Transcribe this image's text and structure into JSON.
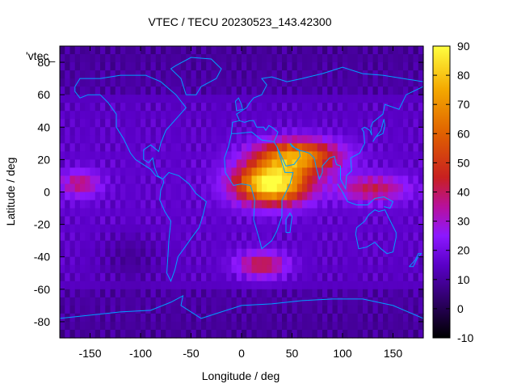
{
  "chart_data": {
    "type": "heatmap",
    "title": "VTEC / TECU 20230523_143.42300",
    "xlabel": "Longitude / deg",
    "ylabel": "Latitude / deg",
    "legend_label": "'vtec_",
    "xlim": [
      -180,
      180
    ],
    "ylim": [
      -90,
      90
    ],
    "xticks": [
      -150,
      -100,
      -50,
      0,
      50,
      100,
      150
    ],
    "yticks": [
      -80,
      -60,
      -40,
      -20,
      0,
      20,
      40,
      60,
      80
    ],
    "colorbar": {
      "min": -10,
      "max": 90,
      "ticks": [
        -10,
        0,
        10,
        20,
        30,
        40,
        50,
        60,
        70,
        80,
        90
      ]
    },
    "grid": false,
    "cell_size_deg": [
      5,
      5
    ],
    "features": [
      {
        "lon": 30,
        "lat": 5,
        "peak": 78,
        "sx": 35,
        "sy": 12
      },
      {
        "lon": 55,
        "lat": 22,
        "peak": 55,
        "sx": 40,
        "sy": 10
      },
      {
        "lon": 20,
        "lat": -45,
        "peak": 28,
        "sx": 25,
        "sy": 8
      },
      {
        "lon": -160,
        "lat": 5,
        "peak": 22,
        "sx": 20,
        "sy": 8
      },
      {
        "lon": 130,
        "lat": 2,
        "peak": 25,
        "sx": 35,
        "sy": 8
      }
    ],
    "background_tecu": 12,
    "coastline_color": "#00a0ff"
  }
}
